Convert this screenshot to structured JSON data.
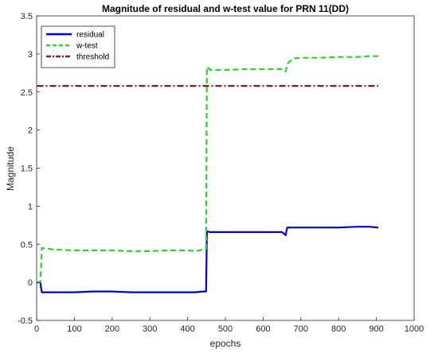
{
  "chart_data": {
    "type": "line",
    "title": "Magnitude of residual and w-test value for PRN 11(DD)",
    "xlabel": "epochs",
    "ylabel": "Magnitude",
    "xlim": [
      0,
      1000
    ],
    "ylim": [
      -0.5,
      3.5
    ],
    "xticks": [
      "0",
      "100",
      "200",
      "300",
      "400",
      "500",
      "600",
      "700",
      "800",
      "900",
      "1000"
    ],
    "yticks": [
      "-0.5",
      "0",
      "0.5",
      "1",
      "1.5",
      "2",
      "2.5",
      "3",
      "3.5"
    ],
    "legend_position": "top-left",
    "grid": false,
    "series": [
      {
        "name": "residual",
        "color": "#0000cc",
        "style": "solid",
        "x": [
          1,
          10,
          12,
          14,
          50,
          100,
          150,
          200,
          250,
          300,
          350,
          400,
          420,
          440,
          449,
          451,
          460,
          500,
          550,
          600,
          650,
          660,
          662,
          664,
          670,
          700,
          750,
          800,
          850,
          880,
          905
        ],
        "y": [
          0.0,
          0.0,
          -0.08,
          -0.13,
          -0.13,
          -0.13,
          -0.12,
          -0.12,
          -0.13,
          -0.13,
          -0.13,
          -0.13,
          -0.13,
          -0.12,
          -0.12,
          0.67,
          0.66,
          0.66,
          0.66,
          0.66,
          0.66,
          0.62,
          0.68,
          0.72,
          0.72,
          0.72,
          0.72,
          0.72,
          0.73,
          0.73,
          0.72
        ]
      },
      {
        "name": "w-test",
        "color": "#33cc33",
        "style": "dashed",
        "x": [
          1,
          10,
          14,
          50,
          100,
          150,
          200,
          250,
          300,
          350,
          400,
          420,
          440,
          449,
          451,
          460,
          500,
          550,
          600,
          650,
          660,
          662,
          666,
          680,
          700,
          750,
          800,
          850,
          880,
          905
        ],
        "y": [
          0.0,
          0.0,
          0.45,
          0.43,
          0.42,
          0.42,
          0.42,
          0.41,
          0.41,
          0.42,
          0.42,
          0.41,
          0.43,
          0.44,
          2.83,
          2.79,
          2.79,
          2.8,
          2.8,
          2.8,
          2.77,
          2.82,
          2.88,
          2.94,
          2.95,
          2.95,
          2.96,
          2.96,
          2.97,
          2.97
        ]
      },
      {
        "name": "threshold",
        "color": "#8b1a1a",
        "style": "dashdot",
        "x": [
          1,
          905
        ],
        "y": [
          2.58,
          2.58
        ]
      }
    ]
  }
}
